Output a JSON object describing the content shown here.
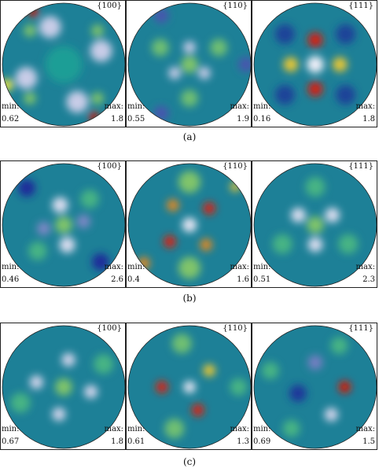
{
  "figure": {
    "rows": [
      {
        "caption": "(a)",
        "panels": [
          {
            "plane": "{100}",
            "min_label": "min:",
            "min": "0.62",
            "max_label": "max:",
            "max": "1.8",
            "blobs": [
              {
                "r": 0.78,
                "a": 45,
                "s": 0.1,
                "v": 0.62
              },
              {
                "r": 0.78,
                "a": 135,
                "s": 0.1,
                "v": 0.62
              },
              {
                "r": 0.78,
                "a": 225,
                "s": 0.1,
                "v": 0.62
              },
              {
                "r": 0.78,
                "a": 315,
                "s": 0.1,
                "v": 0.62
              },
              {
                "r": 0.65,
                "a": 20,
                "s": 0.18,
                "v": 0.06
              },
              {
                "r": 0.65,
                "a": 110,
                "s": 0.18,
                "v": 0.06
              },
              {
                "r": 0.65,
                "a": 200,
                "s": 0.18,
                "v": 0.06
              },
              {
                "r": 0.65,
                "a": 290,
                "s": 0.18,
                "v": 0.06
              },
              {
                "r": 0.98,
                "a": 120,
                "s": 0.08,
                "v": 0.98
              },
              {
                "r": 0.98,
                "a": 300,
                "s": 0.08,
                "v": 0.98
              },
              {
                "r": 0.98,
                "a": 200,
                "s": 0.1,
                "v": 0.75
              },
              {
                "r": 0.0,
                "a": 0,
                "s": 0.3,
                "v": 0.48
              }
            ]
          },
          {
            "plane": "{110}",
            "min_label": "min:",
            "min": "0.55",
            "max_label": "max:",
            "max": "1.9",
            "blobs": [
              {
                "r": 0.0,
                "a": 0,
                "s": 0.07,
                "v": 0.97
              },
              {
                "r": 0.0,
                "a": 0,
                "s": 0.14,
                "v": 0.62
              },
              {
                "r": 0.28,
                "a": 90,
                "s": 0.1,
                "v": 0.06
              },
              {
                "r": 0.28,
                "a": 210,
                "s": 0.1,
                "v": 0.06
              },
              {
                "r": 0.28,
                "a": 330,
                "s": 0.1,
                "v": 0.06
              },
              {
                "r": 0.55,
                "a": 30,
                "s": 0.14,
                "v": 0.6
              },
              {
                "r": 0.55,
                "a": 150,
                "s": 0.14,
                "v": 0.6
              },
              {
                "r": 0.55,
                "a": 270,
                "s": 0.14,
                "v": 0.6
              },
              {
                "r": 0.92,
                "a": 0,
                "s": 0.12,
                "v": 0.2
              },
              {
                "r": 0.92,
                "a": 120,
                "s": 0.12,
                "v": 0.2
              },
              {
                "r": 0.92,
                "a": 240,
                "s": 0.12,
                "v": 0.2
              }
            ]
          },
          {
            "plane": "{111}",
            "min_label": "min:",
            "min": "0.16",
            "max_label": "max:",
            "max": "1.8",
            "blobs": [
              {
                "r": 0.0,
                "a": 0,
                "s": 0.14,
                "v": 0.02
              },
              {
                "r": 0.4,
                "a": 90,
                "s": 0.12,
                "v": 0.97
              },
              {
                "r": 0.4,
                "a": 270,
                "s": 0.12,
                "v": 0.97
              },
              {
                "r": 0.4,
                "a": 0,
                "s": 0.12,
                "v": 0.78
              },
              {
                "r": 0.4,
                "a": 180,
                "s": 0.12,
                "v": 0.78
              },
              {
                "r": 0.7,
                "a": 45,
                "s": 0.16,
                "v": 0.3
              },
              {
                "r": 0.7,
                "a": 135,
                "s": 0.16,
                "v": 0.3
              },
              {
                "r": 0.7,
                "a": 225,
                "s": 0.16,
                "v": 0.3
              },
              {
                "r": 0.7,
                "a": 315,
                "s": 0.16,
                "v": 0.3
              }
            ]
          }
        ]
      },
      {
        "caption": "(b)",
        "panels": [
          {
            "plane": "{100}",
            "min_label": "min:",
            "min": "0.46",
            "max_label": "max:",
            "max": "2.6",
            "blobs": [
              {
                "r": 0.0,
                "a": 0,
                "s": 0.07,
                "v": 0.98
              },
              {
                "r": 0.0,
                "a": 0,
                "s": 0.14,
                "v": 0.62
              },
              {
                "r": 0.33,
                "a": 100,
                "s": 0.13,
                "v": 0.04
              },
              {
                "r": 0.33,
                "a": 280,
                "s": 0.13,
                "v": 0.04
              },
              {
                "r": 0.33,
                "a": 190,
                "s": 0.11,
                "v": 0.14
              },
              {
                "r": 0.33,
                "a": 10,
                "s": 0.11,
                "v": 0.14
              },
              {
                "r": 0.6,
                "a": 45,
                "s": 0.15,
                "v": 0.55
              },
              {
                "r": 0.6,
                "a": 225,
                "s": 0.15,
                "v": 0.55
              },
              {
                "r": 0.85,
                "a": 135,
                "s": 0.14,
                "v": 0.25
              },
              {
                "r": 0.85,
                "a": 315,
                "s": 0.14,
                "v": 0.25
              }
            ]
          },
          {
            "plane": "{110}",
            "min_label": "min:",
            "min": "0.4",
            "max_label": "max:",
            "max": "1.6",
            "blobs": [
              {
                "r": 0.0,
                "a": 0,
                "s": 0.12,
                "v": 0.03
              },
              {
                "r": 0.42,
                "a": 40,
                "s": 0.1,
                "v": 0.96
              },
              {
                "r": 0.42,
                "a": 220,
                "s": 0.1,
                "v": 0.96
              },
              {
                "r": 0.42,
                "a": 130,
                "s": 0.1,
                "v": 0.85
              },
              {
                "r": 0.42,
                "a": 310,
                "s": 0.1,
                "v": 0.85
              },
              {
                "r": 0.7,
                "a": 90,
                "s": 0.18,
                "v": 0.62
              },
              {
                "r": 0.7,
                "a": 270,
                "s": 0.18,
                "v": 0.62
              },
              {
                "r": 0.97,
                "a": 220,
                "s": 0.1,
                "v": 0.85
              },
              {
                "r": 0.97,
                "a": 40,
                "s": 0.08,
                "v": 0.78
              }
            ]
          },
          {
            "plane": "{111}",
            "min_label": "min:",
            "min": "0.51",
            "max_label": "max:",
            "max": "2.3",
            "blobs": [
              {
                "r": 0.0,
                "a": 0,
                "s": 0.07,
                "v": 0.98
              },
              {
                "r": 0.0,
                "a": 0,
                "s": 0.14,
                "v": 0.62
              },
              {
                "r": 0.32,
                "a": 30,
                "s": 0.12,
                "v": 0.04
              },
              {
                "r": 0.32,
                "a": 150,
                "s": 0.12,
                "v": 0.04
              },
              {
                "r": 0.32,
                "a": 270,
                "s": 0.12,
                "v": 0.04
              },
              {
                "r": 0.62,
                "a": 90,
                "s": 0.16,
                "v": 0.55
              },
              {
                "r": 0.62,
                "a": 210,
                "s": 0.16,
                "v": 0.55
              },
              {
                "r": 0.62,
                "a": 330,
                "s": 0.16,
                "v": 0.55
              }
            ]
          }
        ]
      },
      {
        "caption": "(c)",
        "panels": [
          {
            "plane": "{100}",
            "min_label": "min:",
            "min": "0.67",
            "max_label": "max:",
            "max": "1.8",
            "blobs": [
              {
                "r": 0.0,
                "a": 0,
                "s": 0.08,
                "v": 0.98
              },
              {
                "r": 0.0,
                "a": 0,
                "s": 0.14,
                "v": 0.62
              },
              {
                "r": 0.45,
                "a": 80,
                "s": 0.11,
                "v": 0.05
              },
              {
                "r": 0.45,
                "a": 170,
                "s": 0.11,
                "v": 0.05
              },
              {
                "r": 0.45,
                "a": 260,
                "s": 0.11,
                "v": 0.05
              },
              {
                "r": 0.45,
                "a": 350,
                "s": 0.11,
                "v": 0.05
              },
              {
                "r": 0.75,
                "a": 30,
                "s": 0.16,
                "v": 0.55
              },
              {
                "r": 0.75,
                "a": 200,
                "s": 0.16,
                "v": 0.55
              }
            ]
          },
          {
            "plane": "{110}",
            "min_label": "min:",
            "min": "0.61",
            "max_label": "max:",
            "max": "1.3",
            "blobs": [
              {
                "r": 0.0,
                "a": 0,
                "s": 0.1,
                "v": 0.03
              },
              {
                "r": 0.45,
                "a": 180,
                "s": 0.1,
                "v": 0.96
              },
              {
                "r": 0.4,
                "a": 290,
                "s": 0.1,
                "v": 0.96
              },
              {
                "r": 0.42,
                "a": 40,
                "s": 0.1,
                "v": 0.78
              },
              {
                "r": 0.72,
                "a": 100,
                "s": 0.16,
                "v": 0.6
              },
              {
                "r": 0.72,
                "a": 250,
                "s": 0.16,
                "v": 0.6
              },
              {
                "r": 0.8,
                "a": 0,
                "s": 0.14,
                "v": 0.55
              }
            ]
          },
          {
            "plane": "{111}",
            "min_label": "min:",
            "min": "0.69",
            "max_label": "max:",
            "max": "1.5",
            "blobs": [
              {
                "r": 0.48,
                "a": 0,
                "s": 0.1,
                "v": 0.98
              },
              {
                "r": 0.52,
                "a": 300,
                "s": 0.11,
                "v": 0.05
              },
              {
                "r": 0.4,
                "a": 90,
                "s": 0.12,
                "v": 0.15
              },
              {
                "r": 0.3,
                "a": 200,
                "s": 0.14,
                "v": 0.28
              },
              {
                "r": 0.78,
                "a": 60,
                "s": 0.14,
                "v": 0.55
              },
              {
                "r": 0.78,
                "a": 160,
                "s": 0.14,
                "v": 0.55
              },
              {
                "r": 0.78,
                "a": 240,
                "s": 0.14,
                "v": 0.55
              }
            ]
          }
        ]
      }
    ]
  },
  "colorscale": [
    "#ffffff",
    "#1a2a9a",
    "#1ea896",
    "#eae23c",
    "#d40000"
  ]
}
